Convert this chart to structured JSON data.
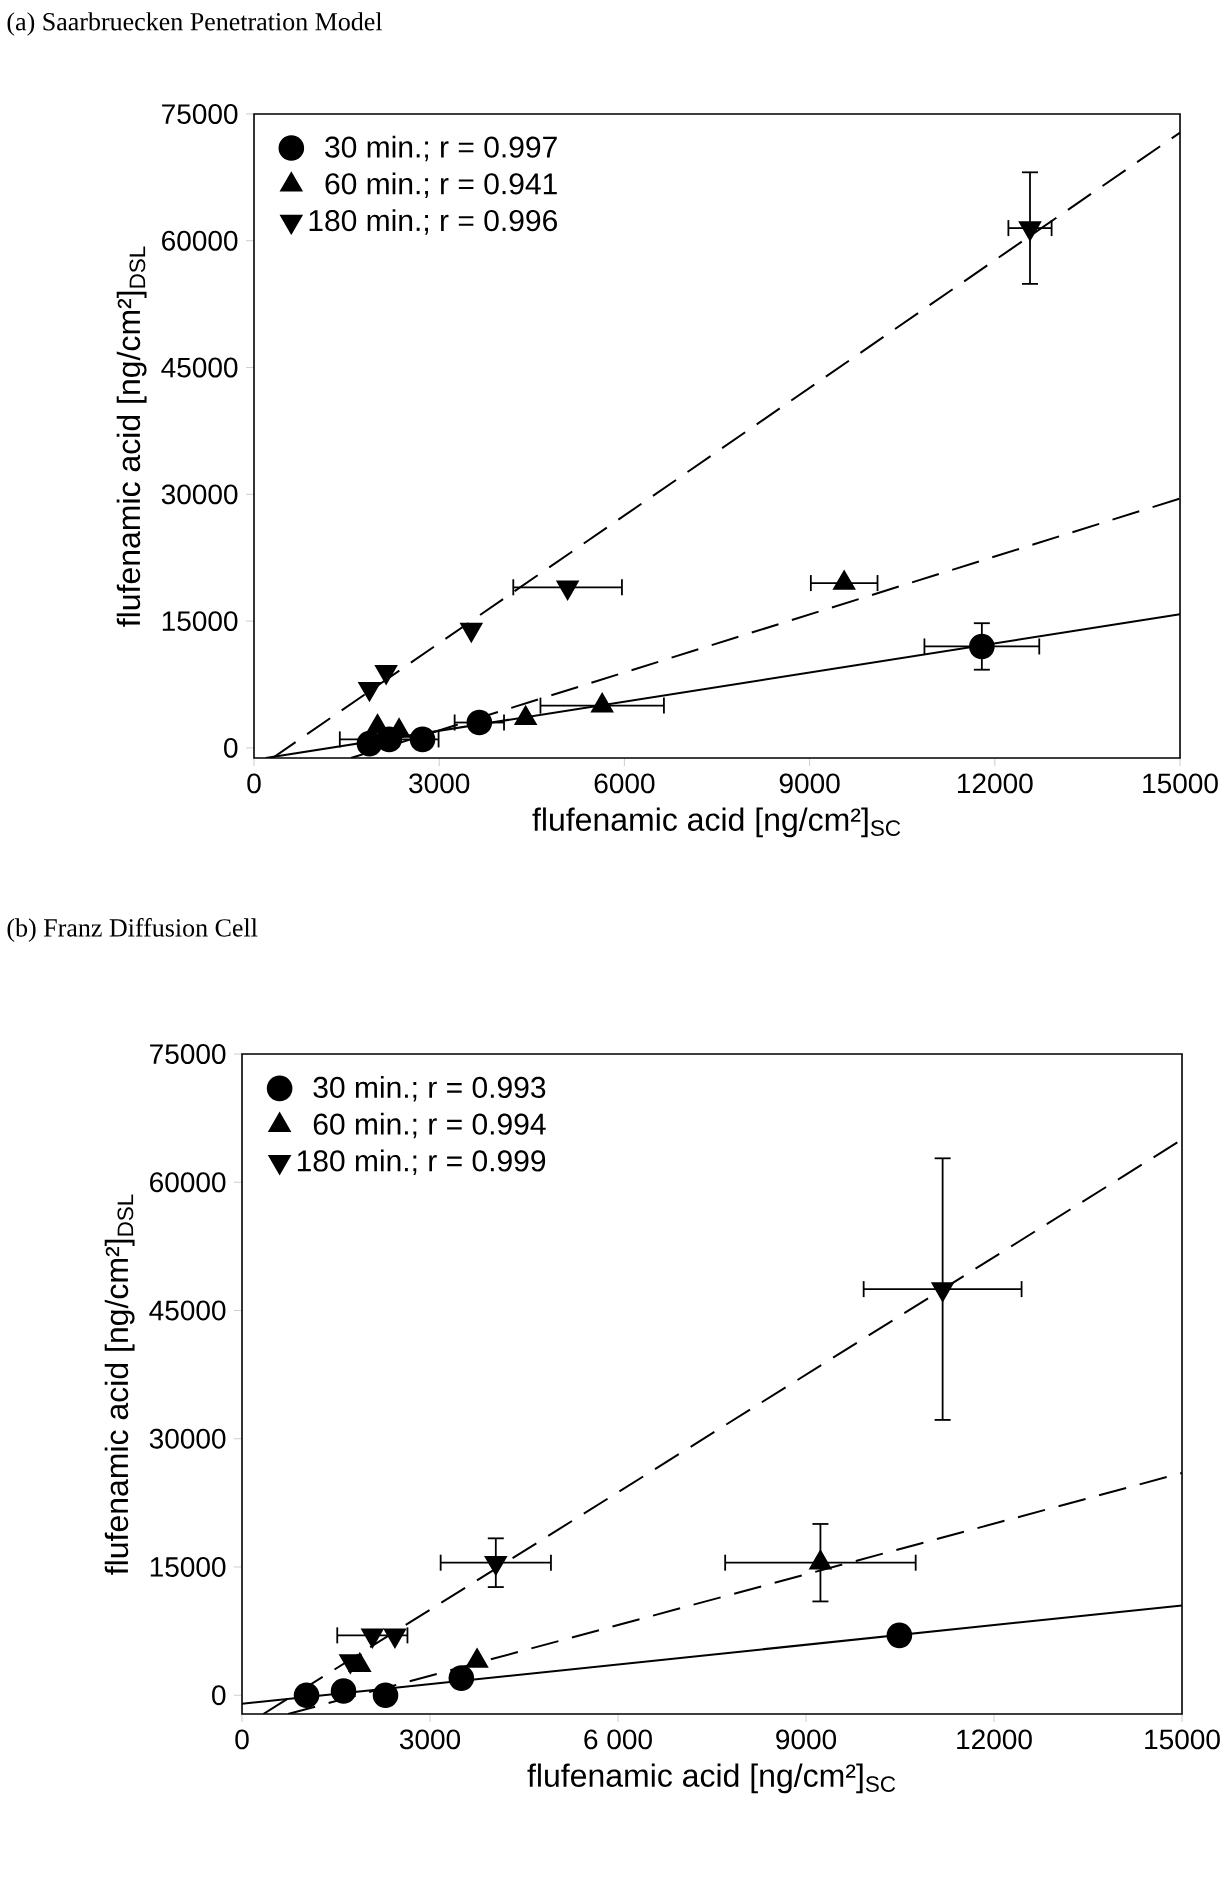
{
  "chart_data": [
    {
      "type": "scatter",
      "title": "(a) Saarbruecken Penetration Model",
      "xlabel": "flufenamic acid [ng/cm²]$_{SC}$",
      "ylabel": "flufenamic acid [ng/cm²]$_{DSL}$",
      "xlim": [
        0,
        15000
      ],
      "ylim": [
        -1200,
        75000
      ],
      "xticks": [
        0,
        3000,
        6000,
        9000,
        12000,
        15000
      ],
      "yticks": [
        0,
        15000,
        30000,
        45000,
        60000,
        75000
      ],
      "legend": "top left",
      "grid": false,
      "series": [
        {
          "name": "30 min.; r = 0.997",
          "color": "#000000",
          "marker": "circle",
          "x": [
            1870,
            2190,
            2730,
            3650,
            11790
          ],
          "values": [
            500,
            1000,
            1000,
            3000,
            12000
          ],
          "errors": [
            null,
            null,
            null,
            null,
            2750
          ],
          "xerrors": [
            null,
            800,
            null,
            400,
            930
          ]
        },
        {
          "name": "60 min.; r = 0.941",
          "color": "#000000",
          "marker": "triangle",
          "x": [
            2000,
            2350,
            4400,
            5640,
            9560
          ],
          "values": [
            2500,
            2000,
            3500,
            5000,
            19500
          ],
          "errors": [
            null,
            null,
            null,
            null,
            null
          ],
          "xerrors": [
            null,
            null,
            null,
            1000,
            540
          ]
        },
        {
          "name": "180 min.; r = 0.996",
          "color": "#000000",
          "marker": "triangle-down",
          "x": [
            1870,
            2140,
            3520,
            5080,
            12570
          ],
          "values": [
            7000,
            9000,
            14000,
            19000,
            61500
          ],
          "errors": [
            null,
            null,
            null,
            null,
            6600
          ],
          "xerrors": [
            null,
            null,
            null,
            880,
            350
          ]
        },
        {
          "type": "line",
          "color": "#000000",
          "line_style": "solid",
          "x": [
            190,
            15000
          ],
          "values": [
            -1200,
            15800
          ]
        },
        {
          "type": "line",
          "color": "#000000",
          "line_style": "dashed",
          "x": [
            1570,
            15000
          ],
          "values": [
            -1200,
            29500
          ]
        },
        {
          "type": "line",
          "color": "#000000",
          "line_style": "dashed",
          "x": [
            300,
            15000
          ],
          "values": [
            -1200,
            72800
          ]
        }
      ]
    },
    {
      "type": "scatter",
      "title": "(b) Franz Diffusion Cell",
      "xlabel": "flufenamic acid [ng/cm²]$_{SC}$",
      "ylabel": "flufenamic acid [ng/cm²]$_{DSL}$",
      "xlim": [
        0,
        15000
      ],
      "ylim": [
        -2200,
        75000
      ],
      "xticks": [
        0,
        3000,
        {
          "value": 6000,
          "label": "6 000"
        },
        9000,
        12000,
        15000
      ],
      "yticks": [
        0,
        15000,
        30000,
        45000,
        60000,
        75000
      ],
      "legend": "top left",
      "grid": false,
      "series": [
        {
          "name": "30 min.; r = 0.993",
          "color": "#000000",
          "marker": "circle",
          "x": [
            1030,
            1620,
            2290,
            3500,
            10490
          ],
          "values": [
            0,
            500,
            0,
            2000,
            7000
          ],
          "errors": [
            null,
            null,
            null,
            null,
            null
          ],
          "xerrors": [
            null,
            null,
            null,
            null,
            null
          ]
        },
        {
          "name": "60 min.; r = 0.994",
          "color": "#000000",
          "marker": "triangle",
          "x": [
            1880,
            3750,
            9230
          ],
          "values": [
            3500,
            4000,
            15500
          ],
          "errors": [
            null,
            null,
            4530
          ],
          "xerrors": [
            null,
            null,
            1520
          ]
        },
        {
          "name": "180 min.;  r = 0.999",
          "color": "#000000",
          "marker": "triangle-down",
          "x": [
            1730,
            2080,
            2440,
            4050,
            11180
          ],
          "values": [
            4000,
            7000,
            7000,
            15500,
            47500
          ],
          "errors": [
            null,
            null,
            null,
            2850,
            15300
          ],
          "xerrors": [
            null,
            560,
            null,
            880,
            1260
          ]
        },
        {
          "type": "line",
          "color": "#000000",
          "line_style": "solid",
          "x": [
            0,
            15000
          ],
          "values": [
            -1000,
            10500
          ]
        },
        {
          "type": "line",
          "color": "#000000",
          "line_style": "dashed",
          "x": [
            735,
            15000
          ],
          "values": [
            -2200,
            26000
          ]
        },
        {
          "type": "line",
          "color": "#000000",
          "line_style": "dashed",
          "x": [
            340,
            15000
          ],
          "values": [
            -2200,
            65000
          ]
        }
      ]
    }
  ]
}
